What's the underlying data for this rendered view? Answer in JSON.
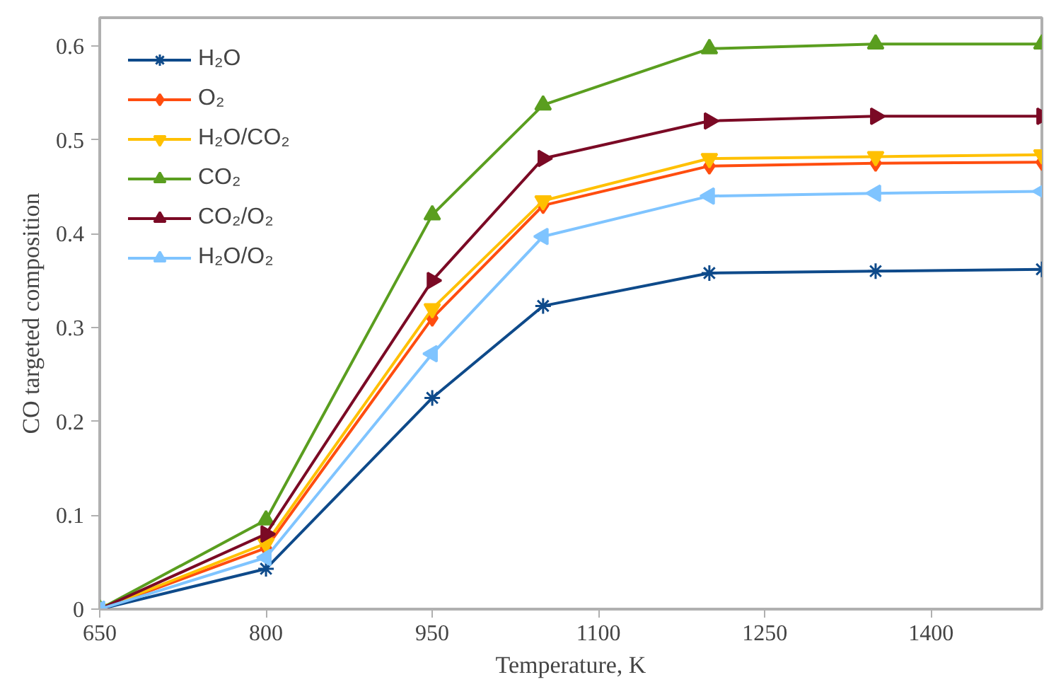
{
  "chart_data": {
    "type": "line",
    "xlabel": "Temperature, K",
    "ylabel": "CO targeted composition",
    "x": [
      650,
      800,
      950,
      1050,
      1200,
      1350,
      1500
    ],
    "xlim": [
      650,
      1500
    ],
    "xticks": [
      650,
      800,
      950,
      1100,
      1250,
      1400
    ],
    "ylim": [
      0,
      0.63
    ],
    "yticks": [
      0,
      0.1,
      0.2,
      0.3,
      0.4,
      0.5,
      0.6
    ],
    "grid": false,
    "legend": "top left",
    "series": [
      {
        "name": "H₂O",
        "color": "#0e4a8a",
        "marker": "cross",
        "values": [
          0,
          0.043,
          0.225,
          0.323,
          0.358,
          0.36,
          0.362
        ]
      },
      {
        "name": "O₂",
        "color": "#ff4d0f",
        "marker": "diamond",
        "values": [
          0,
          0.065,
          0.31,
          0.43,
          0.472,
          0.475,
          0.476
        ]
      },
      {
        "name": "H₂O/CO₂",
        "color": "#ffc000",
        "marker": "triangle_down",
        "values": [
          0,
          0.07,
          0.32,
          0.435,
          0.48,
          0.482,
          0.484
        ]
      },
      {
        "name": "CO₂",
        "color": "#5a9e1f",
        "marker": "triangle",
        "values": [
          0,
          0.095,
          0.42,
          0.537,
          0.597,
          0.602,
          0.602
        ]
      },
      {
        "name": "CO₂/O₂",
        "color": "#7b0a25",
        "marker": "triangle_right",
        "values": [
          0,
          0.08,
          0.35,
          0.48,
          0.52,
          0.525,
          0.525
        ]
      },
      {
        "name": "H₂O/O₂",
        "color": "#7fc4ff",
        "marker": "triangle_left",
        "values": [
          0,
          0.055,
          0.272,
          0.397,
          0.44,
          0.443,
          0.445
        ]
      }
    ]
  }
}
